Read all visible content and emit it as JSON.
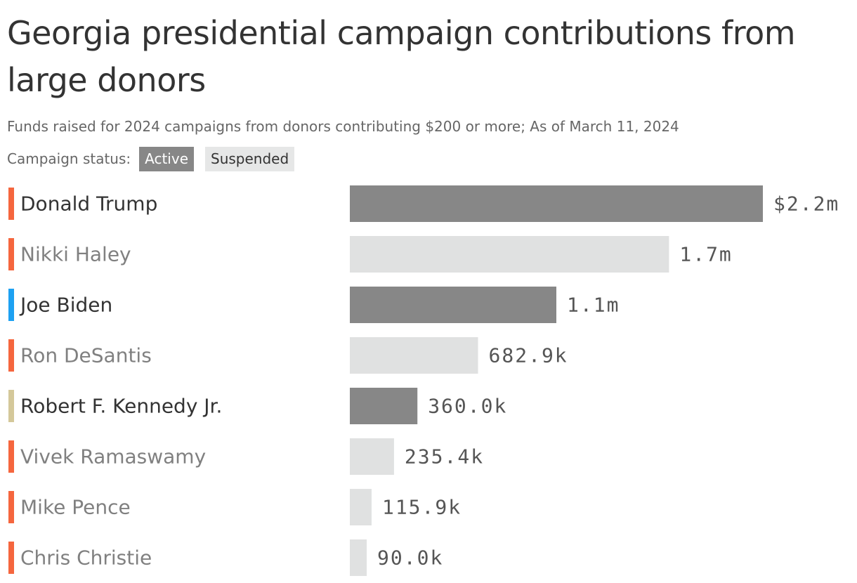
{
  "chart_data": {
    "type": "bar",
    "orientation": "horizontal",
    "title": "Georgia presidential campaign contributions from large donors",
    "subtitle": "Funds raised for 2024 campaigns from donors contributing $200 or more; As of March 11, 2024",
    "legend": {
      "label": "Campaign status:",
      "entries": [
        {
          "name": "Active",
          "color": "#878787"
        },
        {
          "name": "Suspended",
          "color": "#e0e1e1"
        }
      ],
      "placement": "top-left"
    },
    "categories": [
      "Donald Trump",
      "Nikki Haley",
      "Joe Biden",
      "Ron DeSantis",
      "Robert F. Kennedy Jr.",
      "Vivek Ramaswamy",
      "Mike Pence",
      "Chris Christie"
    ],
    "values": [
      2200000,
      1700000,
      1100000,
      682900,
      360000,
      235400,
      115900,
      90000
    ],
    "value_labels": [
      "$2.2m",
      "1.7m",
      "1.1m",
      "682.9k",
      "360.0k",
      "235.4k",
      "115.9k",
      "90.0k"
    ],
    "status": [
      "Active",
      "Suspended",
      "Active",
      "Suspended",
      "Active",
      "Suspended",
      "Suspended",
      "Suspended"
    ],
    "party_colors": [
      "#f5663e",
      "#f5663e",
      "#1da1f2",
      "#f5663e",
      "#d4c89a",
      "#f5663e",
      "#f5663e",
      "#f5663e"
    ],
    "xlim": [
      0,
      2200000
    ],
    "grid": false,
    "colors": {
      "active_bar": "#878787",
      "suspended_bar": "#e0e1e1",
      "active_text": "#333333",
      "suspended_text": "#808080",
      "value_text": "#555555"
    }
  }
}
